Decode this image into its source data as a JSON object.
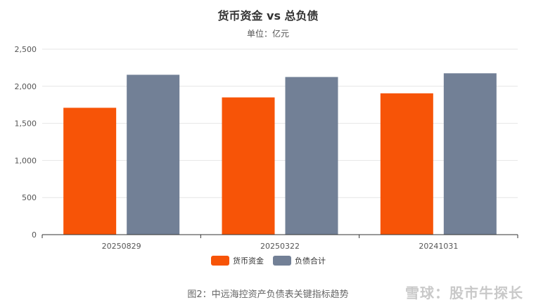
{
  "chart_data": {
    "type": "bar",
    "title": "货币资金 vs 总负债",
    "subtitle": "单位：亿元",
    "categories": [
      "20250829",
      "20250322",
      "20241031"
    ],
    "series": [
      {
        "name": "货币资金",
        "color": "#f75407",
        "values": [
          1710,
          1850,
          1905
        ]
      },
      {
        "name": "负债合计",
        "color": "#728096",
        "values": [
          2155,
          2125,
          2175
        ]
      }
    ],
    "yticks": [
      "0",
      "500",
      "1,000",
      "1,500",
      "2,000",
      "2,500"
    ],
    "ylim": [
      0,
      2500
    ],
    "grid": true,
    "legend": "bottom"
  },
  "caption": "图2：中远海控资产负债表关键指标趋势",
  "watermark": "雪球：股市牛探长"
}
